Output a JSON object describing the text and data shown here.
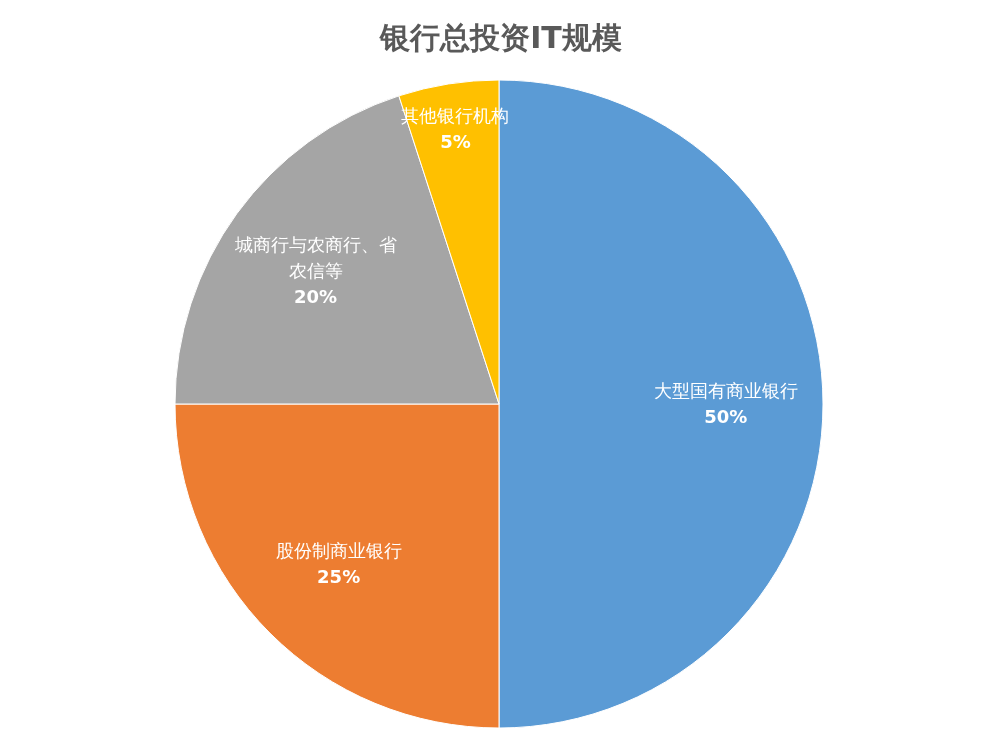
{
  "chart_data": {
    "type": "pie",
    "title": "银行总投资IT规模",
    "categories": [
      "大型国有商业银行",
      "股份制商业银行",
      "城商行与农商行、省农信等",
      "其他银行机构"
    ],
    "values": [
      50,
      25,
      20,
      5
    ],
    "colors": [
      "#5b9bd5",
      "#ed7d31",
      "#a5a5a5",
      "#ffc000"
    ],
    "value_labels": [
      "50%",
      "25%",
      "20%",
      "5%"
    ],
    "legend": false
  }
}
